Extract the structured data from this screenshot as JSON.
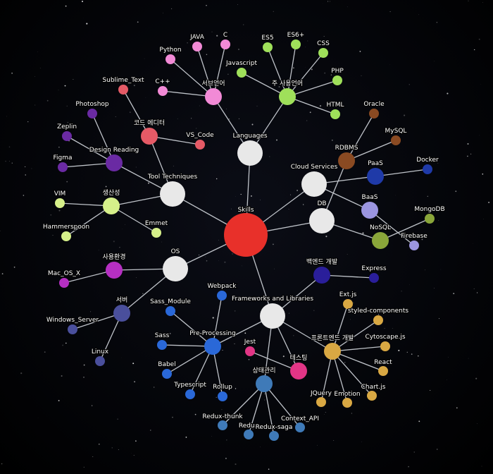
{
  "graph": {
    "nodes": [
      {
        "id": "skills",
        "label": "Skills",
        "color": "#e8302a"
      },
      {
        "id": "languages",
        "label": "Languages",
        "color": "#e8e8e8"
      },
      {
        "id": "tool_tech",
        "label": "Tool Techniques",
        "color": "#e8e8e8"
      },
      {
        "id": "cloud",
        "label": "Cloud Services",
        "color": "#e8e8e8"
      },
      {
        "id": "db",
        "label": "DB",
        "color": "#e8e8e8"
      },
      {
        "id": "os",
        "label": "OS",
        "color": "#e8e8e8"
      },
      {
        "id": "frameworks",
        "label": "Frameworks and Libraries",
        "color": "#e8e8e8"
      },
      {
        "id": "sub_lang",
        "label": "서브언어",
        "color": "#f28ad6"
      },
      {
        "id": "main_lang",
        "label": "주 사용언어",
        "color": "#9fe05a"
      },
      {
        "id": "java",
        "label": "JAVA",
        "color": "#f28ad6"
      },
      {
        "id": "c",
        "label": "C",
        "color": "#f28ad6"
      },
      {
        "id": "python",
        "label": "Python",
        "color": "#f28ad6"
      },
      {
        "id": "cpp",
        "label": "C++",
        "color": "#f28ad6"
      },
      {
        "id": "es5",
        "label": "ES5",
        "color": "#9fe05a"
      },
      {
        "id": "es6",
        "label": "ES6+",
        "color": "#9fe05a"
      },
      {
        "id": "css",
        "label": "CSS",
        "color": "#9fe05a"
      },
      {
        "id": "javascript",
        "label": "Javascript",
        "color": "#9fe05a"
      },
      {
        "id": "php",
        "label": "PHP",
        "color": "#9fe05a"
      },
      {
        "id": "html",
        "label": "HTML",
        "color": "#9fe05a"
      },
      {
        "id": "code_editor",
        "label": "코드 에디터",
        "color": "#e55a66"
      },
      {
        "id": "sublime",
        "label": "Sublime_Text",
        "color": "#e55a66"
      },
      {
        "id": "vscode",
        "label": "VS_Code",
        "color": "#e55a66"
      },
      {
        "id": "design_reading",
        "label": "Design Reading",
        "color": "#6a2aa3"
      },
      {
        "id": "photoshop",
        "label": "Photoshop",
        "color": "#6a2aa3"
      },
      {
        "id": "zeplin",
        "label": "Zeplin",
        "color": "#6a2aa3"
      },
      {
        "id": "figma",
        "label": "Figma",
        "color": "#6a2aa3"
      },
      {
        "id": "productivity",
        "label": "생산성",
        "color": "#d6f08a"
      },
      {
        "id": "vim",
        "label": "VIM",
        "color": "#d6f08a"
      },
      {
        "id": "hammerspoon",
        "label": "Hammerspoon",
        "color": "#d6f08a"
      },
      {
        "id": "emmet",
        "label": "Emmet",
        "color": "#d6f08a"
      },
      {
        "id": "rdbms",
        "label": "RDBMS",
        "color": "#8a4a22"
      },
      {
        "id": "oracle",
        "label": "Oracle",
        "color": "#8a4a22"
      },
      {
        "id": "mysql",
        "label": "MySQL",
        "color": "#8a4a22"
      },
      {
        "id": "paas",
        "label": "PaaS",
        "color": "#1f3aa8"
      },
      {
        "id": "docker",
        "label": "Docker",
        "color": "#1f3aa8"
      },
      {
        "id": "baas",
        "label": "BaaS",
        "color": "#9b95e0"
      },
      {
        "id": "firebase",
        "label": "Firebase",
        "color": "#9b95e0"
      },
      {
        "id": "nosql",
        "label": "NoSQL",
        "color": "#8aa63a"
      },
      {
        "id": "mongodb",
        "label": "MongoDB",
        "color": "#8aa63a"
      },
      {
        "id": "dev_env",
        "label": "사용환경",
        "color": "#b52fc2"
      },
      {
        "id": "macosx",
        "label": "Mac_OS_X",
        "color": "#b52fc2"
      },
      {
        "id": "server",
        "label": "서버",
        "color": "#4a4f9c"
      },
      {
        "id": "windows_server",
        "label": "Windows_Server",
        "color": "#4a4f9c"
      },
      {
        "id": "linux",
        "label": "Linux",
        "color": "#4a4f9c"
      },
      {
        "id": "backend",
        "label": "백엔드 개발",
        "color": "#2a1e9a"
      },
      {
        "id": "express",
        "label": "Express",
        "color": "#2a1e9a"
      },
      {
        "id": "preprocessing",
        "label": "Pre-Processing",
        "color": "#2a68d8"
      },
      {
        "id": "webpack",
        "label": "Webpack",
        "color": "#2a68d8"
      },
      {
        "id": "sass_module",
        "label": "Sass_Module",
        "color": "#2a68d8"
      },
      {
        "id": "sass",
        "label": "Sass",
        "color": "#2a68d8"
      },
      {
        "id": "babel",
        "label": "Babel",
        "color": "#2a68d8"
      },
      {
        "id": "typescript",
        "label": "Typescript",
        "color": "#2a68d8"
      },
      {
        "id": "rollup",
        "label": "Rollup",
        "color": "#2a68d8"
      },
      {
        "id": "frontend",
        "label": "프론트엔드 개발",
        "color": "#d9a843"
      },
      {
        "id": "extjs",
        "label": "Ext.js",
        "color": "#d9a843"
      },
      {
        "id": "styled",
        "label": "styled-components",
        "color": "#d9a843"
      },
      {
        "id": "cytoscape",
        "label": "Cytoscape.js",
        "color": "#d9a843"
      },
      {
        "id": "react",
        "label": "React",
        "color": "#d9a843"
      },
      {
        "id": "chartjs",
        "label": "Chart.js",
        "color": "#d9a843"
      },
      {
        "id": "emotion",
        "label": "Emotion",
        "color": "#d9a843"
      },
      {
        "id": "jquery",
        "label": "JQuery",
        "color": "#d9a843"
      },
      {
        "id": "testing",
        "label": "테스팅",
        "color": "#e23586"
      },
      {
        "id": "jest",
        "label": "Jest",
        "color": "#e23586"
      },
      {
        "id": "state",
        "label": "상태관리",
        "color": "#3f7ab8"
      },
      {
        "id": "redux_thunk",
        "label": "Redux-thunk",
        "color": "#3f7ab8"
      },
      {
        "id": "redux",
        "label": "Redux",
        "color": "#3f7ab8"
      },
      {
        "id": "redux_saga",
        "label": "Redux-saga",
        "color": "#3f7ab8"
      },
      {
        "id": "context_api",
        "label": "Context_API",
        "color": "#3f7ab8"
      }
    ],
    "edges": [
      [
        "skills",
        "languages"
      ],
      [
        "skills",
        "tool_tech"
      ],
      [
        "skills",
        "cloud"
      ],
      [
        "skills",
        "db"
      ],
      [
        "skills",
        "os"
      ],
      [
        "skills",
        "frameworks"
      ],
      [
        "languages",
        "sub_lang"
      ],
      [
        "languages",
        "main_lang"
      ],
      [
        "sub_lang",
        "java"
      ],
      [
        "sub_lang",
        "c"
      ],
      [
        "sub_lang",
        "python"
      ],
      [
        "sub_lang",
        "cpp"
      ],
      [
        "main_lang",
        "es5"
      ],
      [
        "main_lang",
        "es6"
      ],
      [
        "main_lang",
        "css"
      ],
      [
        "main_lang",
        "javascript"
      ],
      [
        "main_lang",
        "php"
      ],
      [
        "main_lang",
        "html"
      ],
      [
        "tool_tech",
        "code_editor"
      ],
      [
        "tool_tech",
        "design_reading"
      ],
      [
        "tool_tech",
        "productivity"
      ],
      [
        "code_editor",
        "sublime"
      ],
      [
        "code_editor",
        "vscode"
      ],
      [
        "design_reading",
        "photoshop"
      ],
      [
        "design_reading",
        "zeplin"
      ],
      [
        "design_reading",
        "figma"
      ],
      [
        "productivity",
        "vim"
      ],
      [
        "productivity",
        "hammerspoon"
      ],
      [
        "productivity",
        "emmet"
      ],
      [
        "db",
        "rdbms"
      ],
      [
        "db",
        "nosql"
      ],
      [
        "rdbms",
        "oracle"
      ],
      [
        "rdbms",
        "mysql"
      ],
      [
        "cloud",
        "paas"
      ],
      [
        "cloud",
        "baas"
      ],
      [
        "paas",
        "docker"
      ],
      [
        "baas",
        "firebase"
      ],
      [
        "nosql",
        "mongodb"
      ],
      [
        "os",
        "dev_env"
      ],
      [
        "os",
        "server"
      ],
      [
        "dev_env",
        "macosx"
      ],
      [
        "server",
        "windows_server"
      ],
      [
        "server",
        "linux"
      ],
      [
        "frameworks",
        "backend"
      ],
      [
        "frameworks",
        "preprocessing"
      ],
      [
        "frameworks",
        "frontend"
      ],
      [
        "frameworks",
        "testing"
      ],
      [
        "frameworks",
        "state"
      ],
      [
        "backend",
        "express"
      ],
      [
        "preprocessing",
        "webpack"
      ],
      [
        "preprocessing",
        "sass_module"
      ],
      [
        "preprocessing",
        "sass"
      ],
      [
        "preprocessing",
        "babel"
      ],
      [
        "preprocessing",
        "typescript"
      ],
      [
        "preprocessing",
        "rollup"
      ],
      [
        "frontend",
        "extjs"
      ],
      [
        "frontend",
        "styled"
      ],
      [
        "frontend",
        "cytoscape"
      ],
      [
        "frontend",
        "react"
      ],
      [
        "frontend",
        "chartjs"
      ],
      [
        "frontend",
        "emotion"
      ],
      [
        "frontend",
        "jquery"
      ],
      [
        "testing",
        "jest"
      ],
      [
        "state",
        "redux_thunk"
      ],
      [
        "state",
        "redux"
      ],
      [
        "state",
        "redux_saga"
      ],
      [
        "state",
        "context_api"
      ]
    ]
  }
}
